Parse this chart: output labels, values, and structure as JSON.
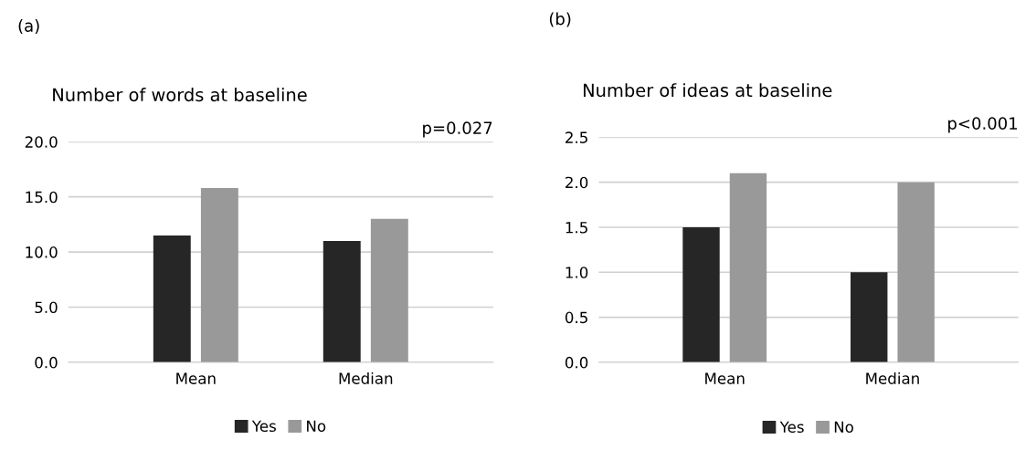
{
  "chart_data": [
    {
      "type": "bar",
      "title": "Number of words at baseline",
      "annotations": [
        "(a)",
        "p=0.027"
      ],
      "categories": [
        "Mean",
        "Median"
      ],
      "series": [
        {
          "name": "Yes",
          "color": "#262626",
          "values": [
            11.5,
            11.0
          ]
        },
        {
          "name": "No",
          "color": "#999999",
          "values": [
            15.8,
            13.0
          ]
        }
      ],
      "ylim": [
        0,
        20
      ],
      "yticks": [
        {
          "value": 0,
          "label": "0.0"
        },
        {
          "value": 5,
          "label": "5.0"
        },
        {
          "value": 10,
          "label": "10.0"
        },
        {
          "value": 15,
          "label": "15.0"
        },
        {
          "value": 20,
          "label": "20.0"
        }
      ],
      "grid": "y",
      "legend": "bottom"
    },
    {
      "type": "bar",
      "title": "Number of ideas at baseline",
      "annotations": [
        "(b)",
        "p<0.001"
      ],
      "categories": [
        "Mean",
        "Median"
      ],
      "series": [
        {
          "name": "Yes",
          "color": "#262626",
          "values": [
            1.5,
            1.0
          ]
        },
        {
          "name": "No",
          "color": "#999999",
          "values": [
            2.1,
            2.0
          ]
        }
      ],
      "ylim": [
        0,
        2.5
      ],
      "yticks": [
        {
          "value": 0,
          "label": "0.0"
        },
        {
          "value": 0.5,
          "label": "0.5"
        },
        {
          "value": 1,
          "label": "1.0"
        },
        {
          "value": 1.5,
          "label": "1.5"
        },
        {
          "value": 2,
          "label": "2.0"
        },
        {
          "value": 2.5,
          "label": "2.5"
        }
      ],
      "grid": "y",
      "legend": "bottom"
    }
  ]
}
